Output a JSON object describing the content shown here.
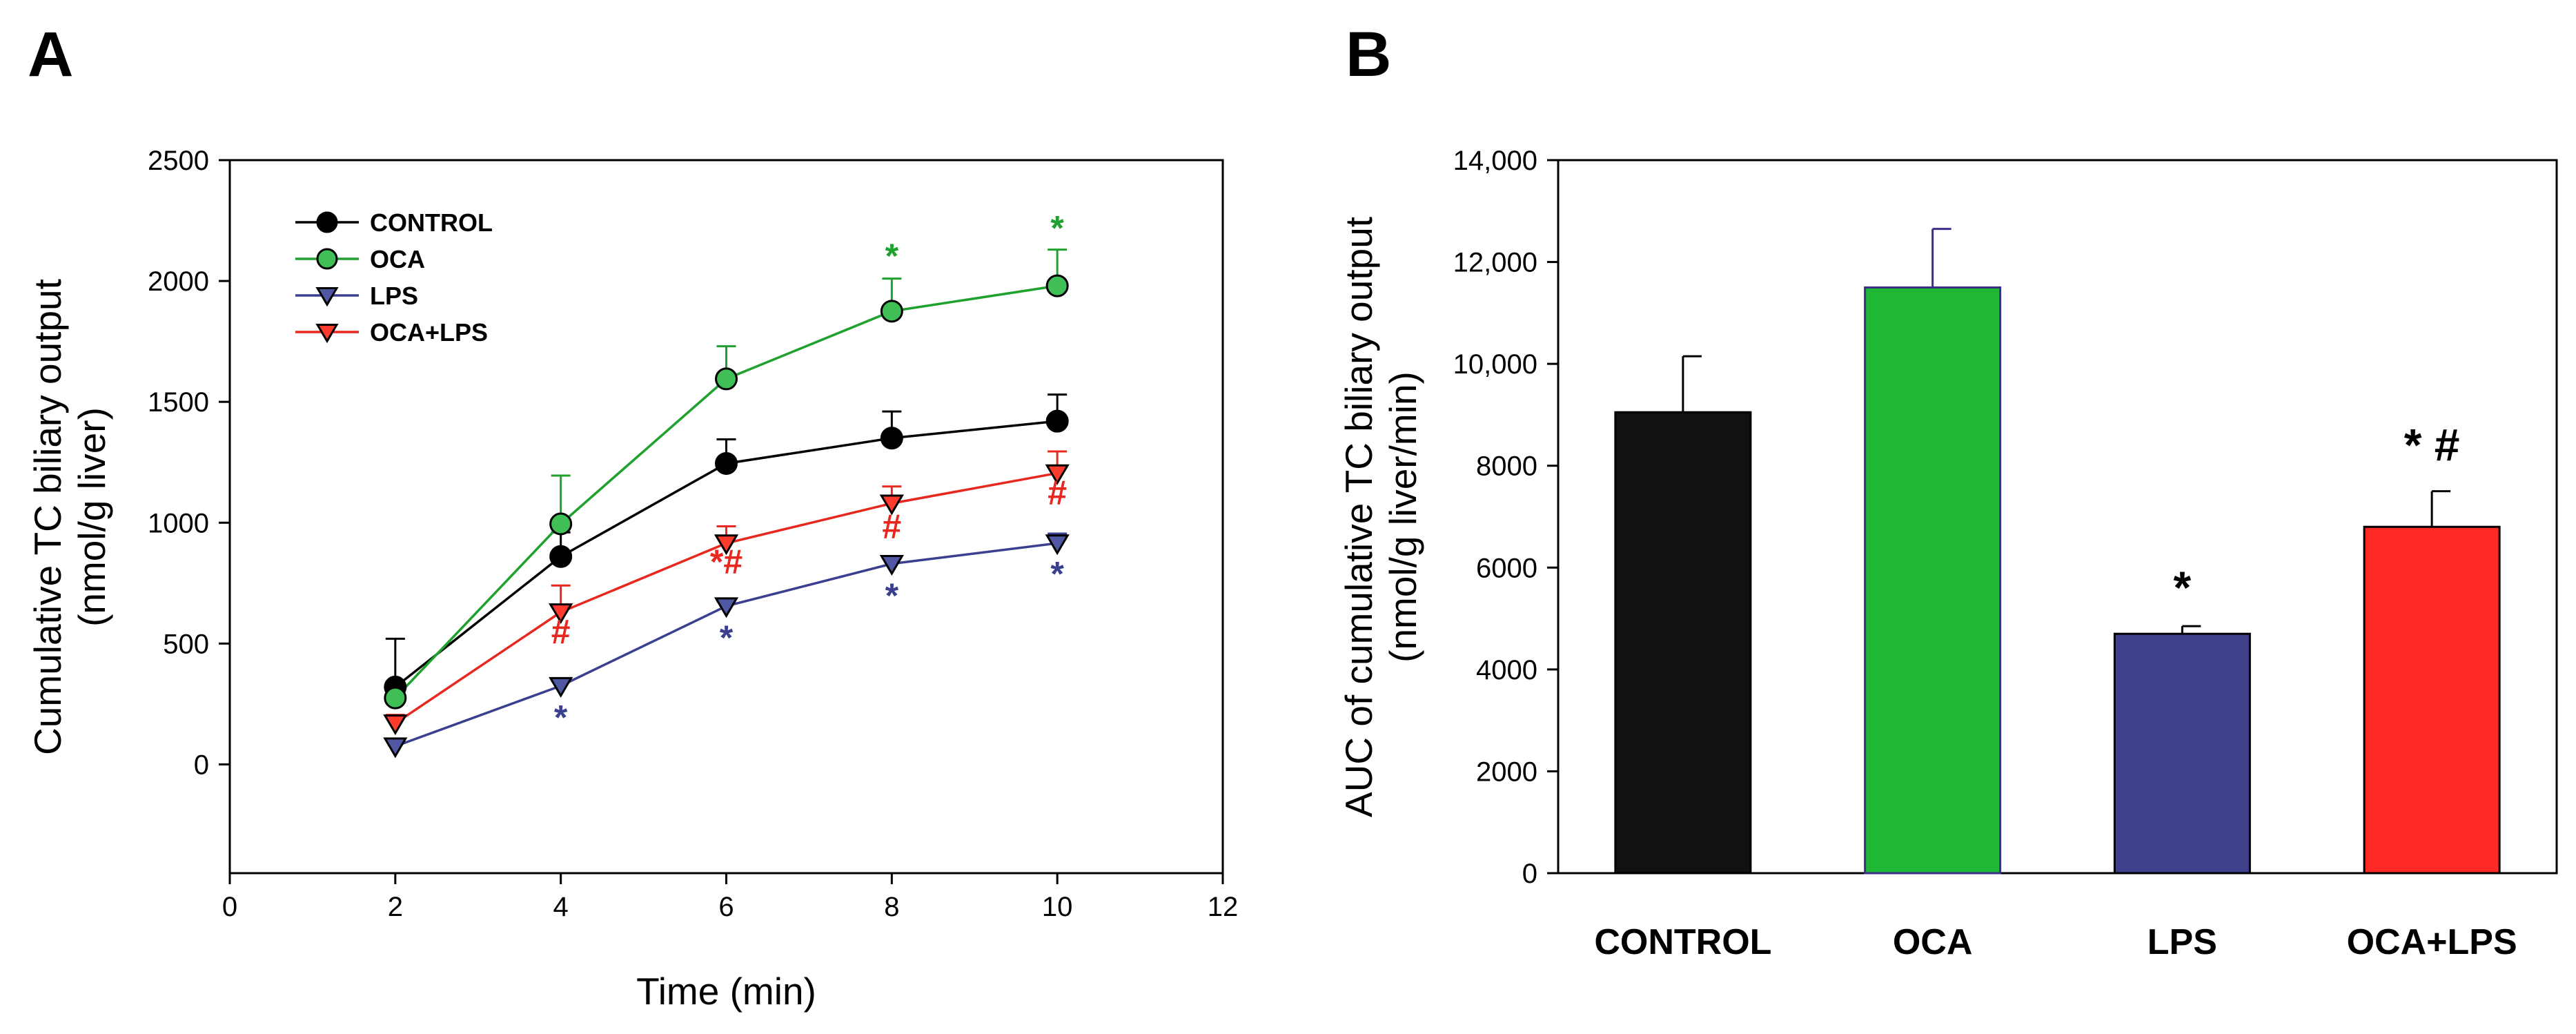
{
  "chart_data": [
    {
      "panel": "A",
      "type": "line",
      "xlabel": "Time (min)",
      "ylabel": [
        "Cumulative TC biliary output",
        "(nmol/g liver)"
      ],
      "xlim": [
        0,
        12
      ],
      "ylim": [
        -450,
        2500
      ],
      "xticks": [
        "0",
        "2",
        "4",
        "6",
        "8",
        "10",
        "12"
      ],
      "yticks": [
        "0",
        "500",
        "1000",
        "1500",
        "2000",
        "2500"
      ],
      "legend_position": "top-left",
      "x": [
        2,
        4,
        6,
        8,
        10
      ],
      "series": [
        {
          "name": "CONTROL",
          "color": "#000000",
          "marker": "circle",
          "values": [
            320,
            860,
            1245,
            1350,
            1420
          ],
          "errors": [
            200,
            100,
            100,
            110,
            110
          ]
        },
        {
          "name": "OCA",
          "color": "#1fa12e",
          "marker": "circle",
          "values": [
            275,
            995,
            1595,
            1875,
            1980
          ],
          "errors": [
            20,
            200,
            135,
            135,
            150
          ]
        },
        {
          "name": "LPS",
          "color": "#3a3f8f",
          "marker": "triangle-down",
          "values": [
            75,
            325,
            655,
            830,
            915
          ],
          "errors": [
            25,
            20,
            20,
            30,
            40
          ]
        },
        {
          "name": "OCA+LPS",
          "color": "#e8281e",
          "marker": "triangle-down",
          "values": [
            170,
            630,
            915,
            1080,
            1205
          ],
          "errors": [
            35,
            110,
            70,
            70,
            90
          ]
        }
      ],
      "annotations": [
        {
          "text": "*",
          "color": "#1fa12e",
          "x": 8,
          "y": 2055
        },
        {
          "text": "*",
          "color": "#1fa12e",
          "x": 10,
          "y": 2170
        },
        {
          "text": "#",
          "color": "#e8281e",
          "x": 4,
          "y": 500
        },
        {
          "text": "*#",
          "color": "#e8281e",
          "x": 6,
          "y": 790
        },
        {
          "text": "#",
          "color": "#e8281e",
          "x": 8,
          "y": 935
        },
        {
          "text": "#",
          "color": "#e8281e",
          "x": 10,
          "y": 1075
        },
        {
          "text": "*",
          "color": "#3a3f8f",
          "x": 4,
          "y": 145
        },
        {
          "text": "*",
          "color": "#3a3f8f",
          "x": 6,
          "y": 475
        },
        {
          "text": "*",
          "color": "#3a3f8f",
          "x": 8,
          "y": 650
        },
        {
          "text": "*",
          "color": "#3a3f8f",
          "x": 10,
          "y": 740
        }
      ]
    },
    {
      "panel": "B",
      "type": "bar",
      "ylabel": [
        "AUC of cumulative TC biliary output",
        "(nmol/g liver/min)"
      ],
      "ylim": [
        0,
        14000
      ],
      "yticks": [
        "0",
        "2000",
        "4000",
        "6000",
        "8000",
        "10,000",
        "12,000",
        "14,000"
      ],
      "categories": [
        "CONTROL",
        "OCA",
        "LPS",
        "OCA+LPS"
      ],
      "values": [
        9050,
        11500,
        4700,
        6800
      ],
      "errors": [
        1100,
        1150,
        150,
        700
      ],
      "colors": [
        "#111111",
        "#1fb834",
        "#3f3f8c",
        "#ff2a24"
      ],
      "annotations": [
        {
          "text": "*",
          "category": "LPS",
          "y": 5300
        },
        {
          "text": "* #",
          "category": "OCA+LPS",
          "y": 8100
        }
      ]
    }
  ]
}
